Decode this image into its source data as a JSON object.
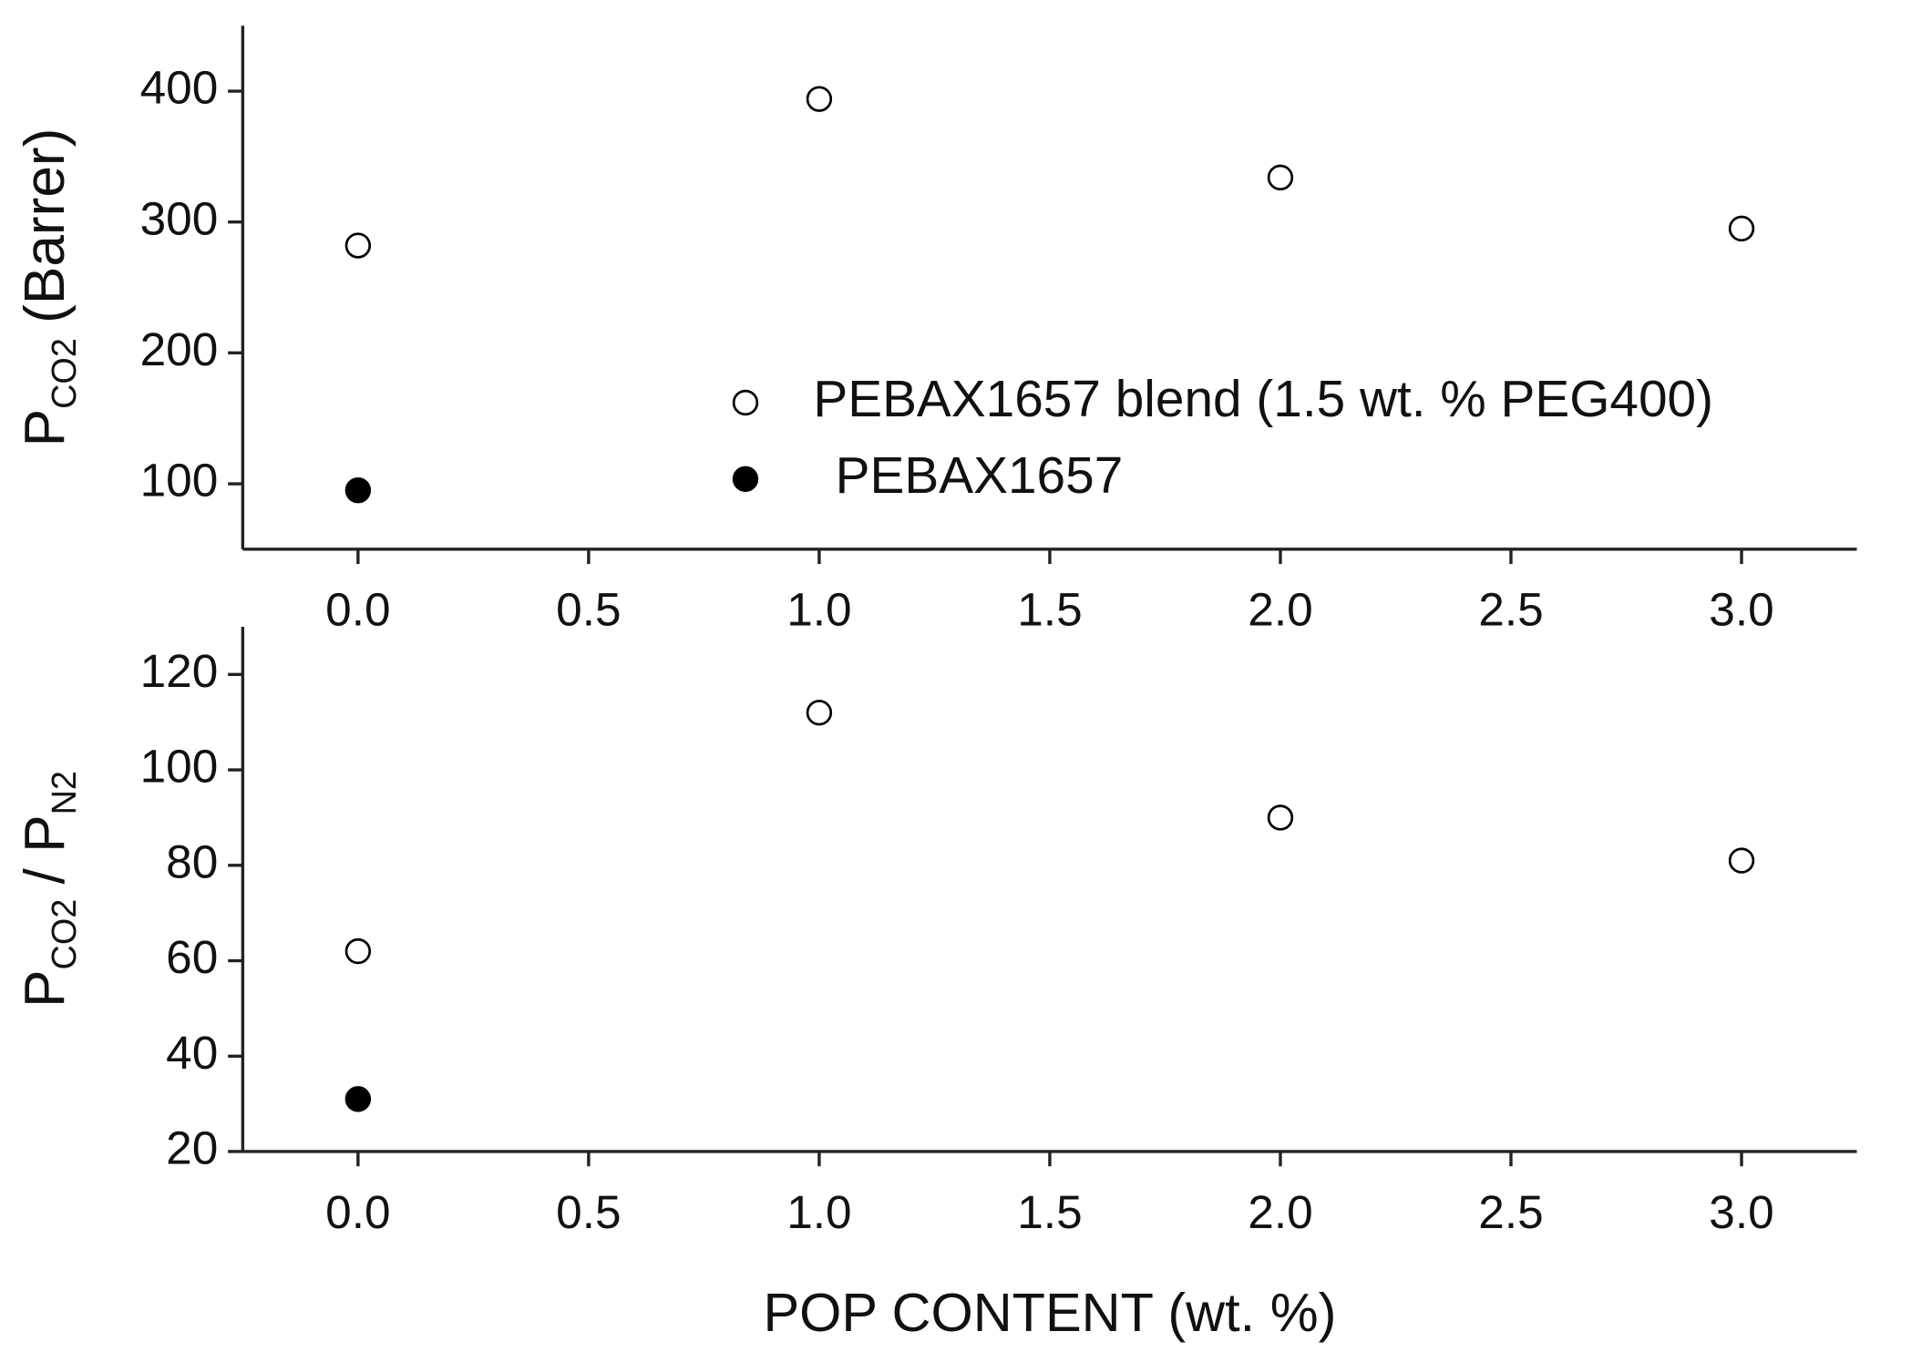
{
  "chart_data": [
    {
      "type": "scatter",
      "ylabel": [
        {
          "text": "P"
        },
        {
          "text": "CO2",
          "sub": true
        },
        {
          "text": "(Barrer)"
        }
      ],
      "x": [
        0,
        1,
        2,
        3
      ],
      "series": [
        {
          "name": "PEBAX1657 blend  (1.5 wt. % PEG400)",
          "color": "#000000",
          "marker": "open",
          "x": [
            0,
            1,
            2,
            3
          ],
          "values": [
            282,
            394,
            334,
            295
          ]
        },
        {
          "name": "PEBAX1657",
          "color": "#000000",
          "marker": "filled",
          "x": [
            0
          ],
          "values": [
            95
          ]
        }
      ],
      "xlim": [
        -0.25,
        3.25
      ],
      "xticks": [
        {
          "value": 0,
          "label": "0.0"
        },
        {
          "value": 0.5,
          "label": "0.5"
        },
        {
          "value": 1,
          "label": "1.0"
        },
        {
          "value": 1.5,
          "label": "1.5"
        },
        {
          "value": 2,
          "label": "2.0"
        },
        {
          "value": 2.5,
          "label": "2.5"
        },
        {
          "value": 3,
          "label": "3.0"
        }
      ],
      "ylim": [
        50,
        450
      ],
      "yticks": [
        100,
        200,
        300,
        400
      ],
      "legend": "right",
      "grid": false
    },
    {
      "type": "scatter",
      "ylabel": [
        {
          "text": "P"
        },
        {
          "text": "CO2",
          "sub": true
        },
        {
          "text": "/ P"
        },
        {
          "text": "N2",
          "sub": true
        }
      ],
      "xlabel": "POP  CONTENT   (wt. %)",
      "series": [
        {
          "color": "#000000",
          "marker": "open",
          "x": [
            0,
            1,
            2,
            3
          ],
          "values": [
            62,
            112,
            90,
            81
          ]
        },
        {
          "color": "#000000",
          "marker": "filled",
          "x": [
            0
          ],
          "values": [
            31
          ]
        }
      ],
      "xlim": [
        -0.25,
        3.25
      ],
      "xticks": [
        {
          "value": 0,
          "label": "0.0"
        },
        {
          "value": 0.5,
          "label": "0.5"
        },
        {
          "value": 1,
          "label": "1.0"
        },
        {
          "value": 1.5,
          "label": "1.5"
        },
        {
          "value": 2,
          "label": "2.0"
        },
        {
          "value": 2.5,
          "label": "2.5"
        },
        {
          "value": 3,
          "label": "3.0"
        }
      ],
      "ylim": [
        20,
        130
      ],
      "yticks": [
        20,
        40,
        60,
        80,
        100,
        120
      ],
      "grid": false
    }
  ]
}
